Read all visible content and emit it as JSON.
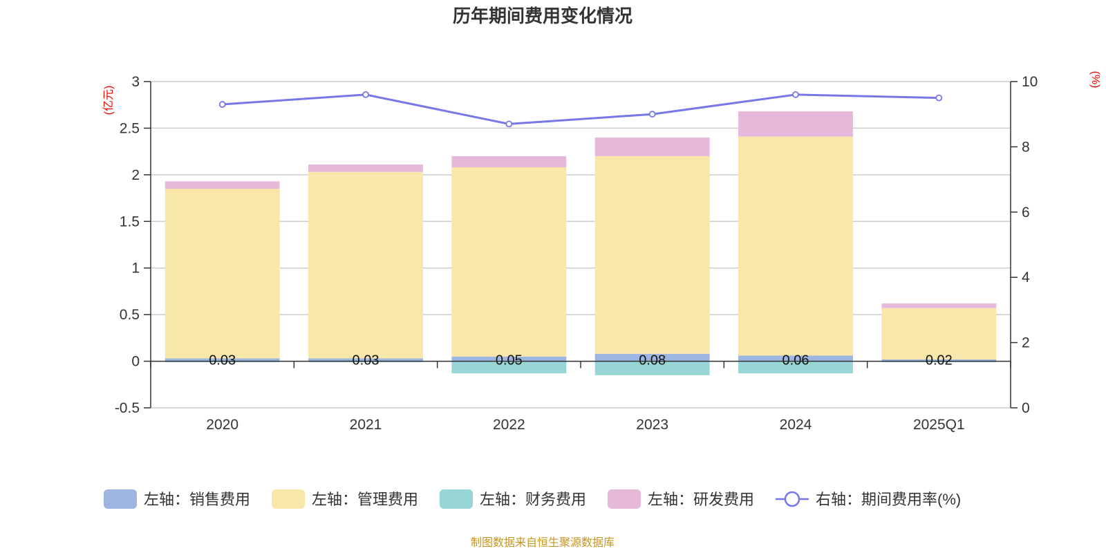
{
  "chart_data": {
    "type": "bar",
    "title": "历年期间费用变化情况",
    "categories": [
      "2020",
      "2021",
      "2022",
      "2023",
      "2024",
      "2025Q1"
    ],
    "left_axis": {
      "unit": "(亿元)",
      "ylim": [
        -0.5,
        3
      ],
      "ticks": [
        "3",
        "2.5",
        "2",
        "1.5",
        "1",
        "0.5",
        "0",
        "-0.5"
      ]
    },
    "right_axis": {
      "unit": "(%)",
      "ylim": [
        0,
        10
      ],
      "ticks": [
        "10",
        "8",
        "6",
        "4",
        "2",
        "0"
      ]
    },
    "series": [
      {
        "name": "左轴：销售费用",
        "type": "bar",
        "axis": "left",
        "color": "#9db5e2",
        "values": [
          0.03,
          0.03,
          0.05,
          0.08,
          0.06,
          0.02
        ],
        "labels": [
          "0.03",
          "0.03",
          "0.05",
          "0.08",
          "0.06",
          "0.02"
        ]
      },
      {
        "name": "左轴：管理费用",
        "type": "bar",
        "axis": "left",
        "color": "#f8e7a8",
        "values": [
          1.82,
          2.0,
          2.03,
          2.12,
          2.35,
          0.55
        ]
      },
      {
        "name": "左轴：财务费用",
        "type": "bar",
        "axis": "left",
        "color": "#98d5d5",
        "values": [
          -0.01,
          -0.01,
          -0.13,
          -0.15,
          -0.13,
          -0.01
        ]
      },
      {
        "name": "左轴：研发费用",
        "type": "bar",
        "axis": "left",
        "color": "#e6b9da",
        "values": [
          0.08,
          0.08,
          0.12,
          0.2,
          0.27,
          0.05
        ]
      },
      {
        "name": "右轴：期间费用率(%)",
        "type": "line",
        "axis": "right",
        "color": "#7578e6",
        "values": [
          9.3,
          9.6,
          8.7,
          9.0,
          9.6,
          9.5
        ]
      }
    ],
    "grid": true,
    "legend_position": "bottom"
  },
  "footer": {
    "source": "制图数据来自恒生聚源数据库"
  }
}
